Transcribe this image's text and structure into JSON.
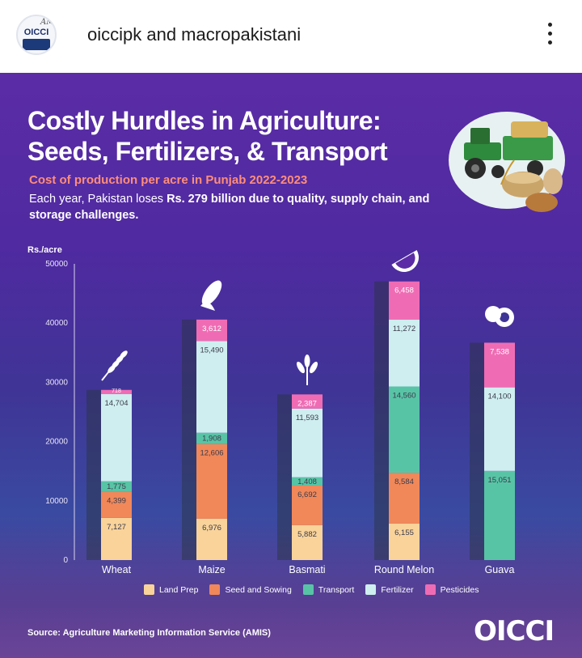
{
  "post_header": {
    "account_handle": "oiccipk and macropakistani",
    "avatar_text": "OICCI",
    "avatar_signature": "AMP"
  },
  "graphic": {
    "title_line1": "Costly Hurdles in Agriculture:",
    "title_line2": "Seeds, Fertilizers, & Transport",
    "subtitle": "Cost of production per acre in Punjab 2022-2023",
    "desc_part1": "Each year, Pakistan loses ",
    "desc_bold": "Rs. 279 billion due to quality, supply chain, and storage challenges.",
    "source": "Source: Agriculture Marketing Information Service (AMIS)",
    "brand": "OICCI"
  },
  "colors": {
    "land_prep": "#f9d39a",
    "seed_sowing": "#f0885a",
    "transport": "#58c4a6",
    "fertilizer": "#cfeef0",
    "pesticides": "#ef6cb4"
  },
  "chart_data": {
    "type": "bar",
    "stacked": true,
    "ylabel": "Rs./acre",
    "ylim": [
      0,
      50000
    ],
    "yticks": [
      0,
      10000,
      20000,
      30000,
      40000,
      50000
    ],
    "categories": [
      "Wheat",
      "Maize",
      "Basmati",
      "Round Melon",
      "Guava"
    ],
    "series": [
      {
        "name": "Land Prep",
        "values": [
          7127,
          6976,
          5882,
          6155,
          0
        ],
        "labels": [
          "7,127",
          "6,976",
          "5,882",
          "6,155",
          ""
        ]
      },
      {
        "name": "Seed and Sowing",
        "values": [
          4399,
          12606,
          6692,
          8584,
          0
        ],
        "labels": [
          "4,399",
          "12,606",
          "6,692",
          "8,584",
          ""
        ]
      },
      {
        "name": "Transport",
        "values": [
          1775,
          1908,
          1408,
          14560,
          15051
        ],
        "labels": [
          "1,775",
          "1,908",
          "1,408",
          "14,560",
          "15,051"
        ]
      },
      {
        "name": "Fertilizer",
        "values": [
          14704,
          15490,
          11593,
          11272,
          14100
        ],
        "labels": [
          "14,704",
          "15,490",
          "11,593",
          "11,272",
          "14,100"
        ]
      },
      {
        "name": "Pesticides",
        "values": [
          718,
          3612,
          2387,
          6458,
          7538
        ],
        "labels": [
          "718",
          "3,612",
          "2,387",
          "6,458",
          "7,538"
        ]
      }
    ],
    "legend_position": "bottom",
    "grid": false
  }
}
